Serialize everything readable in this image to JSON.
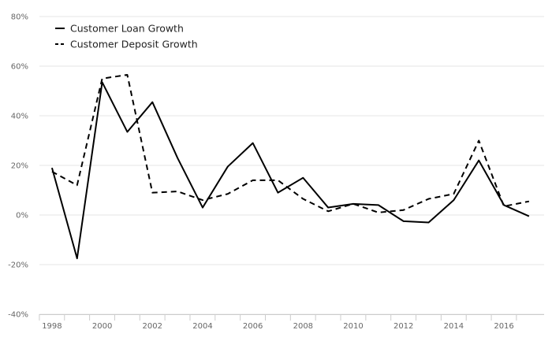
{
  "chart_data": {
    "type": "line",
    "title": "",
    "xlabel": "",
    "ylabel": "",
    "x": [
      1998,
      1999,
      2000,
      2001,
      2002,
      2003,
      2004,
      2005,
      2006,
      2007,
      2008,
      2009,
      2010,
      2011,
      2012,
      2013,
      2014,
      2015,
      2016,
      2017
    ],
    "xlim": [
      1997.5,
      2017.6
    ],
    "ylim": [
      -40,
      80
    ],
    "x_tick_labels": [
      "1998",
      "2000",
      "2002",
      "2004",
      "2006",
      "2008",
      "2010",
      "2012",
      "2014",
      "2016"
    ],
    "y_tick_labels": [
      "80%",
      "60%",
      "40%",
      "20%",
      "0%",
      "-20%",
      "-40%"
    ],
    "grid": "horizontal",
    "legend_position": "top-left",
    "series": [
      {
        "name": "Customer Loan Growth",
        "style": "solid",
        "color": "#000000",
        "values": [
          19,
          -17.5,
          53.5,
          33.5,
          45.5,
          23,
          3,
          19.5,
          29,
          9,
          15,
          3,
          4.5,
          4,
          -2.5,
          -3,
          6,
          22,
          4,
          -0.5
        ]
      },
      {
        "name": "Customer Deposit Growth",
        "style": "dashed",
        "color": "#000000",
        "values": [
          17.5,
          12,
          55,
          56.5,
          9,
          9.5,
          6,
          8.5,
          14,
          14,
          6.5,
          1.5,
          4.5,
          1,
          2,
          6.5,
          8.5,
          30,
          3.5,
          5.5
        ]
      }
    ]
  }
}
